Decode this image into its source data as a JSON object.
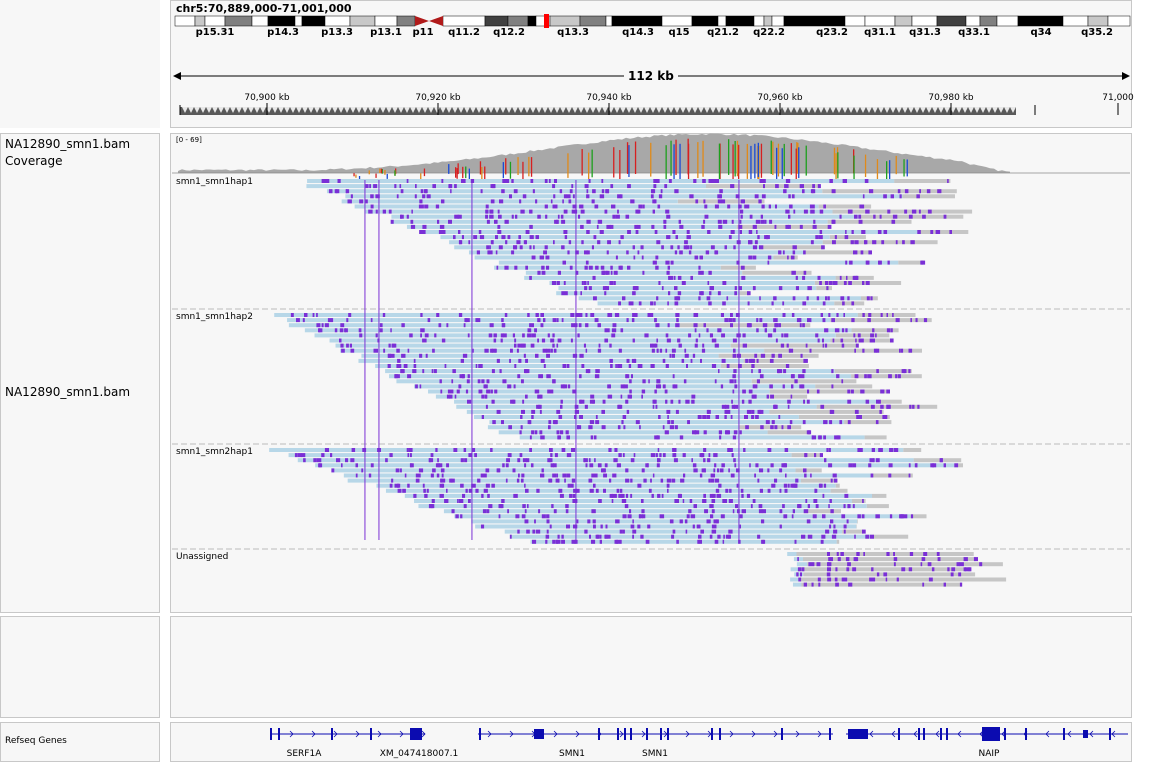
{
  "header": {
    "locus": "chr5:70,889,000-71,001,000",
    "span_label": "112 kb"
  },
  "ideogram": {
    "bands": [
      "p15.31",
      "p14.3",
      "p13.3",
      "p13.1",
      "p11",
      "q11.2",
      "q12.2",
      "q13.3",
      "q14.3",
      "q15",
      "q21.2",
      "q22.2",
      "q23.2",
      "q31.1",
      "q31.3",
      "q33.1",
      "q34",
      "q35.2"
    ]
  },
  "ruler": {
    "ticks": [
      "70,900 kb",
      "70,920 kb",
      "70,940 kb",
      "70,960 kb",
      "70,980 kb",
      "71,000"
    ]
  },
  "tracks": {
    "coverage_name": "NA12890_smn1.bam Coverage",
    "coverage_range": "[0 - 69]",
    "alignment_name": "NA12890_smn1.bam",
    "groups": [
      "smn1_smn1hap1",
      "smn1_smn1hap2",
      "smn1_smn2hap1",
      "Unassigned"
    ],
    "refseq_name": "Refseq Genes"
  },
  "genes": [
    "SERF1A",
    "XM_047418007.1",
    "SMN1",
    "SMN1",
    "NAIP"
  ],
  "colors": {
    "read_blue": "#b7d7e8",
    "read_gray": "#c6c6c6",
    "mismatch_purple": "#7a2fd6",
    "gene_blue": "#0b0bb0",
    "coverage_gray": "#a8a8a8"
  }
}
